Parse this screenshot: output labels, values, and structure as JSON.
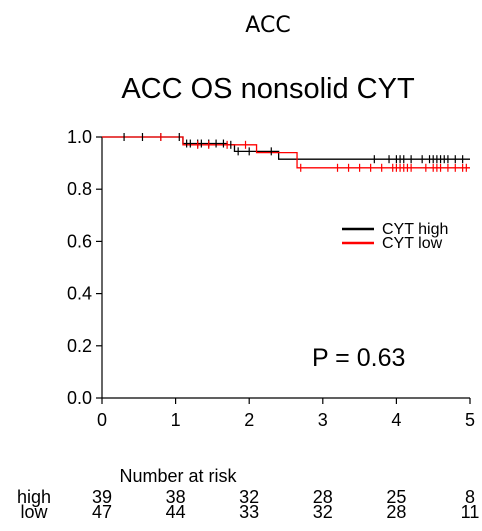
{
  "figure": {
    "supertitle": "ACC",
    "title": "ACC OS nonsolid CYT",
    "pvalue_text": "P = 0.63",
    "risk_table_title": "Number at risk"
  },
  "chart_data": {
    "type": "line",
    "title": "ACC OS nonsolid CYT",
    "xlabel": "",
    "ylabel": "",
    "xlim": [
      0,
      5
    ],
    "ylim": [
      0,
      1
    ],
    "x_ticks": [
      0,
      1,
      2,
      3,
      4,
      5
    ],
    "y_ticks": [
      0.0,
      0.2,
      0.4,
      0.6,
      0.8,
      1.0
    ],
    "y_tick_labels": [
      "0.0",
      "0.2",
      "0.4",
      "0.6",
      "0.8",
      "1.0"
    ],
    "grid": false,
    "legend_position": "right",
    "series": [
      {
        "name": "CYT high",
        "color": "#000000",
        "steps": [
          [
            0,
            1.0
          ],
          [
            1.1,
            0.975
          ],
          [
            1.7,
            0.97
          ],
          [
            1.8,
            0.945
          ],
          [
            2.4,
            0.915
          ],
          [
            5,
            0.915
          ]
        ],
        "censor_x": [
          0.3,
          0.55,
          0.8,
          1.05,
          1.15,
          1.2,
          1.3,
          1.35,
          1.45,
          1.55,
          1.65,
          1.75,
          1.85,
          2.0,
          2.3,
          3.7,
          3.9,
          4.0,
          4.05,
          4.1,
          4.2,
          4.35,
          4.45,
          4.5,
          4.55,
          4.6,
          4.65,
          4.7,
          4.8,
          4.9
        ]
      },
      {
        "name": "CYT low",
        "color": "#ff0000",
        "steps": [
          [
            0,
            1.0
          ],
          [
            1.1,
            0.97
          ],
          [
            2.1,
            0.94
          ],
          [
            2.65,
            0.882
          ],
          [
            5,
            0.882
          ]
        ],
        "censor_x": [
          0.8,
          1.3,
          1.45,
          1.7,
          1.95,
          2.7,
          3.2,
          3.35,
          3.5,
          3.65,
          3.8,
          3.95,
          4.0,
          4.05,
          4.1,
          4.15,
          4.2,
          4.4,
          4.5,
          4.55,
          4.6,
          4.7,
          4.8,
          4.9,
          4.95
        ]
      }
    ],
    "risk_table": {
      "times": [
        0,
        1,
        2,
        3,
        4,
        5
      ],
      "rows": [
        {
          "label": "high",
          "values": [
            39,
            38,
            32,
            28,
            25,
            8
          ]
        },
        {
          "label": "low",
          "values": [
            47,
            44,
            33,
            32,
            28,
            11
          ]
        }
      ]
    }
  }
}
